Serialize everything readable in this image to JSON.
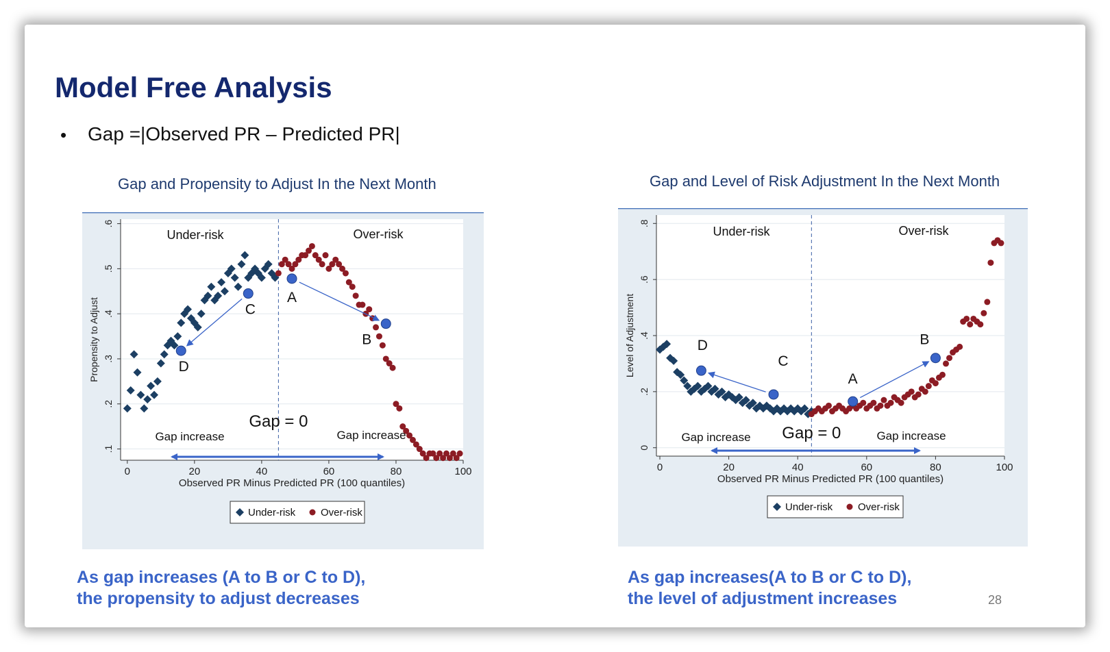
{
  "slide": {
    "title": "Model Free Analysis",
    "bullet": "•",
    "bullet_text": "Gap =|Observed PR – Predicted PR|",
    "page_number": "28",
    "caption_left": [
      "As gap increases (A to B or C to D),",
      "the propensity to adjust decreases"
    ],
    "caption_right": [
      "As gap increases(A to B or C to D),",
      "the level of adjustment increases"
    ]
  },
  "colors": {
    "title": "#14286e",
    "caption": "#3a64c8",
    "under_risk": "#1c3f63",
    "over_risk": "#8c1c24",
    "highlight_point": "#3a64c8",
    "plot_background": "#e6edf3"
  },
  "chart_data": [
    {
      "type": "scatter",
      "title": "Gap and Propensity to Adjust In the Next Month",
      "xlabel": "Observed PR Minus Predicted PR (100 quantiles)",
      "ylabel": "Propensity to Adjust",
      "xlim": [
        -2,
        100
      ],
      "ylim": [
        0.075,
        0.61
      ],
      "xticks": [
        0,
        20,
        40,
        60,
        80,
        100
      ],
      "yticks": [
        0.1,
        0.2,
        0.3,
        0.4,
        0.5,
        0.6
      ],
      "ytick_labels": [
        ".1",
        ".2",
        ".3",
        ".4",
        ".5",
        ".6"
      ],
      "grid": true,
      "zero_line_x": 45,
      "region_labels": [
        "Under-risk",
        "Over-risk"
      ],
      "gap_zero_label": "Gap = 0",
      "gap_increase_labels": [
        "Gap increase",
        "Gap increase"
      ],
      "series": [
        {
          "name": "Under-risk",
          "marker": "diamond",
          "x": [
            0,
            1,
            2,
            3,
            4,
            5,
            6,
            7,
            8,
            9,
            10,
            11,
            12,
            13,
            14,
            15,
            16,
            17,
            18,
            19,
            20,
            21,
            22,
            23,
            24,
            25,
            26,
            27,
            28,
            29,
            30,
            31,
            32,
            33,
            34,
            35,
            36,
            37,
            38,
            39,
            40,
            41,
            42,
            43,
            44
          ],
          "y": [
            0.19,
            0.23,
            0.31,
            0.27,
            0.22,
            0.19,
            0.21,
            0.24,
            0.22,
            0.25,
            0.29,
            0.31,
            0.33,
            0.34,
            0.33,
            0.35,
            0.38,
            0.4,
            0.41,
            0.39,
            0.38,
            0.37,
            0.4,
            0.43,
            0.44,
            0.46,
            0.43,
            0.44,
            0.47,
            0.45,
            0.49,
            0.5,
            0.48,
            0.46,
            0.51,
            0.53,
            0.48,
            0.49,
            0.5,
            0.49,
            0.48,
            0.5,
            0.51,
            0.49,
            0.48
          ]
        },
        {
          "name": "Over-risk",
          "marker": "circle",
          "x": [
            45,
            46,
            47,
            48,
            49,
            50,
            51,
            52,
            53,
            54,
            55,
            56,
            57,
            58,
            59,
            60,
            61,
            62,
            63,
            64,
            65,
            66,
            67,
            68,
            69,
            70,
            71,
            72,
            73,
            74,
            75,
            76,
            77,
            78,
            79,
            80,
            81,
            82,
            83,
            84,
            85,
            86,
            87,
            88,
            89,
            90,
            91,
            92,
            93,
            94,
            95,
            96,
            97,
            98,
            99
          ],
          "y": [
            0.49,
            0.51,
            0.52,
            0.51,
            0.5,
            0.51,
            0.52,
            0.53,
            0.53,
            0.54,
            0.55,
            0.53,
            0.52,
            0.51,
            0.53,
            0.5,
            0.51,
            0.52,
            0.51,
            0.5,
            0.49,
            0.47,
            0.46,
            0.44,
            0.42,
            0.42,
            0.4,
            0.41,
            0.39,
            0.37,
            0.35,
            0.33,
            0.3,
            0.29,
            0.28,
            0.2,
            0.19,
            0.15,
            0.14,
            0.13,
            0.12,
            0.11,
            0.1,
            0.09,
            0.08,
            0.09,
            0.09,
            0.08,
            0.09,
            0.08,
            0.09,
            0.08,
            0.09,
            0.08,
            0.09
          ]
        }
      ],
      "highlight_points": [
        {
          "label": "A",
          "x": 49,
          "y": 0.478
        },
        {
          "label": "B",
          "x": 77,
          "y": 0.378
        },
        {
          "label": "C",
          "x": 36,
          "y": 0.445
        },
        {
          "label": "D",
          "x": 16,
          "y": 0.318
        }
      ],
      "legend": {
        "position": "bottom",
        "entries": [
          "Under-risk",
          "Over-risk"
        ]
      }
    },
    {
      "type": "scatter",
      "title": "Gap and Level of Risk Adjustment In the Next Month",
      "xlabel": "Observed PR Minus Predicted PR (100 quantiles)",
      "ylabel": "Level of Adjustment",
      "xlim": [
        -1,
        100
      ],
      "ylim": [
        -0.03,
        0.83
      ],
      "xticks": [
        0,
        20,
        40,
        60,
        80,
        100
      ],
      "yticks": [
        0,
        0.2,
        0.4,
        0.6,
        0.8
      ],
      "ytick_labels": [
        "0",
        ".2",
        ".4",
        ".6",
        ".8"
      ],
      "grid": true,
      "zero_line_x": 44,
      "region_labels": [
        "Under-risk",
        "Over-risk"
      ],
      "gap_zero_label": "Gap = 0",
      "gap_increase_labels": [
        "Gap increase",
        "Gap increase"
      ],
      "series": [
        {
          "name": "Under-risk",
          "marker": "diamond",
          "x": [
            0,
            1,
            2,
            3,
            4,
            5,
            6,
            7,
            8,
            9,
            10,
            11,
            12,
            13,
            14,
            15,
            16,
            17,
            18,
            19,
            20,
            21,
            22,
            23,
            24,
            25,
            26,
            27,
            28,
            29,
            30,
            31,
            32,
            33,
            34,
            35,
            36,
            37,
            38,
            39,
            40,
            41,
            42,
            43,
            44
          ],
          "y": [
            0.35,
            0.36,
            0.37,
            0.32,
            0.31,
            0.27,
            0.26,
            0.24,
            0.22,
            0.2,
            0.21,
            0.22,
            0.2,
            0.21,
            0.22,
            0.2,
            0.21,
            0.19,
            0.2,
            0.18,
            0.19,
            0.18,
            0.17,
            0.18,
            0.16,
            0.17,
            0.15,
            0.16,
            0.14,
            0.15,
            0.14,
            0.15,
            0.14,
            0.13,
            0.14,
            0.13,
            0.14,
            0.13,
            0.14,
            0.13,
            0.14,
            0.13,
            0.14,
            0.12,
            0.13
          ]
        },
        {
          "name": "Over-risk",
          "marker": "circle",
          "x": [
            44,
            45,
            46,
            47,
            48,
            49,
            50,
            51,
            52,
            53,
            54,
            55,
            56,
            57,
            58,
            59,
            60,
            61,
            62,
            63,
            64,
            65,
            66,
            67,
            68,
            69,
            70,
            71,
            72,
            73,
            74,
            75,
            76,
            77,
            78,
            79,
            80,
            81,
            82,
            83,
            84,
            85,
            86,
            87,
            88,
            89,
            90,
            91,
            92,
            93,
            94,
            95,
            96,
            97,
            98,
            99
          ],
          "y": [
            0.12,
            0.13,
            0.14,
            0.13,
            0.14,
            0.15,
            0.13,
            0.14,
            0.15,
            0.14,
            0.13,
            0.14,
            0.15,
            0.14,
            0.15,
            0.16,
            0.14,
            0.15,
            0.16,
            0.14,
            0.15,
            0.17,
            0.15,
            0.16,
            0.18,
            0.17,
            0.16,
            0.18,
            0.19,
            0.2,
            0.18,
            0.19,
            0.21,
            0.2,
            0.22,
            0.24,
            0.23,
            0.25,
            0.26,
            0.3,
            0.32,
            0.34,
            0.35,
            0.36,
            0.45,
            0.46,
            0.44,
            0.46,
            0.45,
            0.44,
            0.48,
            0.52,
            0.66,
            0.73,
            0.74,
            0.73
          ]
        }
      ],
      "highlight_points": [
        {
          "label": "A",
          "x": 56,
          "y": 0.165
        },
        {
          "label": "B",
          "x": 80,
          "y": 0.32
        },
        {
          "label": "C",
          "x": 33,
          "y": 0.19
        },
        {
          "label": "D",
          "x": 12,
          "y": 0.275
        }
      ],
      "legend": {
        "position": "bottom",
        "entries": [
          "Under-risk",
          "Over-risk"
        ]
      }
    }
  ]
}
